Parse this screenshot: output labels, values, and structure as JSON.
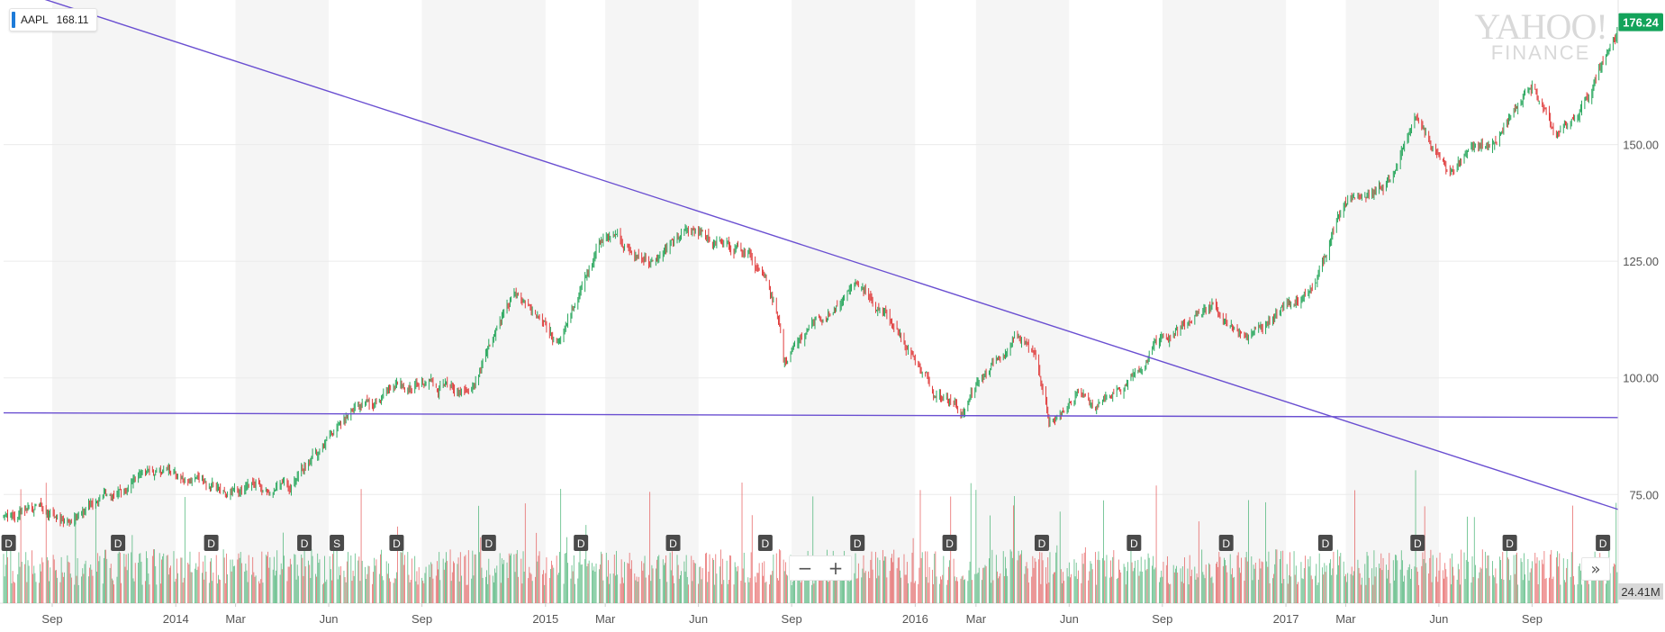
{
  "ticker": {
    "symbol": "AAPL",
    "price": "168.11",
    "accent": "#1d7bd8"
  },
  "logo": {
    "line1": "YAHOO!",
    "line2": "FINANCE"
  },
  "controls": {
    "zoom_out": "−",
    "zoom_in": "+",
    "expand": "»"
  },
  "colors": {
    "up": "#26a65b",
    "down": "#e03c3c",
    "trend": "#6a4fd1",
    "last_price": "#13a35a",
    "marker": "#4a4a4a",
    "band": "#f5f5f5"
  },
  "chart_data": {
    "type": "candlestick",
    "xlim": [
      "2013-07-15",
      "2017-11-25"
    ],
    "ylim": [
      71,
      181
    ],
    "y_ticks": [
      "75.00",
      "100.00",
      "125.00",
      "150.00"
    ],
    "x_ticks": [
      {
        "date": "2013-09-01",
        "label": "Sep"
      },
      {
        "date": "2014-01-01",
        "label": "2014"
      },
      {
        "date": "2014-03-01",
        "label": "Mar"
      },
      {
        "date": "2014-06-01",
        "label": "Jun"
      },
      {
        "date": "2014-09-01",
        "label": "Sep"
      },
      {
        "date": "2015-01-01",
        "label": "2015"
      },
      {
        "date": "2015-03-01",
        "label": "Mar"
      },
      {
        "date": "2015-06-01",
        "label": "Jun"
      },
      {
        "date": "2015-09-01",
        "label": "Sep"
      },
      {
        "date": "2016-01-01",
        "label": "2016"
      },
      {
        "date": "2016-03-01",
        "label": "Mar"
      },
      {
        "date": "2016-06-01",
        "label": "Jun"
      },
      {
        "date": "2016-09-01",
        "label": "Sep"
      },
      {
        "date": "2017-01-01",
        "label": "2017"
      },
      {
        "date": "2017-03-01",
        "label": "Mar"
      },
      {
        "date": "2017-06-01",
        "label": "Jun"
      },
      {
        "date": "2017-09-01",
        "label": "Sep"
      }
    ],
    "price_path": [
      [
        "2013-07-15",
        70
      ],
      [
        "2013-08-15",
        72
      ],
      [
        "2013-09-20",
        69
      ],
      [
        "2013-10-25",
        75
      ],
      [
        "2013-12-05",
        80
      ],
      [
        "2014-01-25",
        77
      ],
      [
        "2014-02-25",
        76
      ],
      [
        "2014-04-25",
        76
      ],
      [
        "2014-06-01",
        87
      ],
      [
        "2014-06-20",
        92
      ],
      [
        "2014-07-15",
        94
      ],
      [
        "2014-09-01",
        100
      ],
      [
        "2014-10-15",
        97
      ],
      [
        "2014-12-01",
        118
      ],
      [
        "2014-12-25",
        112
      ],
      [
        "2015-01-15",
        108
      ],
      [
        "2015-02-25",
        130
      ],
      [
        "2015-04-15",
        126
      ],
      [
        "2015-05-20",
        131
      ],
      [
        "2015-07-20",
        128
      ],
      [
        "2015-08-20",
        112
      ],
      [
        "2015-08-24",
        104
      ],
      [
        "2015-09-25",
        112
      ],
      [
        "2015-11-05",
        120
      ],
      [
        "2015-12-15",
        110
      ],
      [
        "2016-01-20",
        97
      ],
      [
        "2016-02-20",
        94
      ],
      [
        "2016-04-10",
        110
      ],
      [
        "2016-04-28",
        104
      ],
      [
        "2016-05-12",
        91
      ],
      [
        "2016-06-10",
        98
      ],
      [
        "2016-06-27",
        93
      ],
      [
        "2016-07-25",
        98
      ],
      [
        "2016-09-01",
        108
      ],
      [
        "2016-10-20",
        116
      ],
      [
        "2016-11-20",
        107
      ],
      [
        "2017-01-31",
        121
      ],
      [
        "2017-02-28",
        137
      ],
      [
        "2017-04-15",
        142
      ],
      [
        "2017-05-10",
        155
      ],
      [
        "2017-06-10",
        143
      ],
      [
        "2017-07-20",
        150
      ],
      [
        "2017-09-01",
        162
      ],
      [
        "2017-09-25",
        152
      ],
      [
        "2017-10-20",
        157
      ],
      [
        "2017-11-25",
        175
      ]
    ],
    "trendlines": [
      {
        "from": [
          "2013-07-15",
          184.0
        ],
        "to": [
          "2017-11-25",
          71.8
        ]
      },
      {
        "from": [
          "2013-07-15",
          92.5
        ],
        "to": [
          "2017-11-25",
          91.5
        ]
      }
    ],
    "last_price": {
      "value": 176.24,
      "label": "176.24"
    },
    "volume_label": "24.41M",
    "dividend_markers": [
      {
        "date": "2013-07-20",
        "label": "D"
      },
      {
        "date": "2013-11-05",
        "label": "D"
      },
      {
        "date": "2014-02-05",
        "label": "D"
      },
      {
        "date": "2014-05-08",
        "label": "D"
      },
      {
        "date": "2014-06-09",
        "label": "S"
      },
      {
        "date": "2014-08-07",
        "label": "D"
      },
      {
        "date": "2014-11-06",
        "label": "D"
      },
      {
        "date": "2015-02-05",
        "label": "D"
      },
      {
        "date": "2015-05-07",
        "label": "D"
      },
      {
        "date": "2015-08-06",
        "label": "D"
      },
      {
        "date": "2015-11-05",
        "label": "D"
      },
      {
        "date": "2016-02-04",
        "label": "D"
      },
      {
        "date": "2016-05-05",
        "label": "D"
      },
      {
        "date": "2016-08-04",
        "label": "D"
      },
      {
        "date": "2016-11-03",
        "label": "D"
      },
      {
        "date": "2017-02-09",
        "label": "D"
      },
      {
        "date": "2017-05-11",
        "label": "D"
      },
      {
        "date": "2017-08-10",
        "label": "D"
      },
      {
        "date": "2017-11-10",
        "label": "D"
      }
    ]
  }
}
